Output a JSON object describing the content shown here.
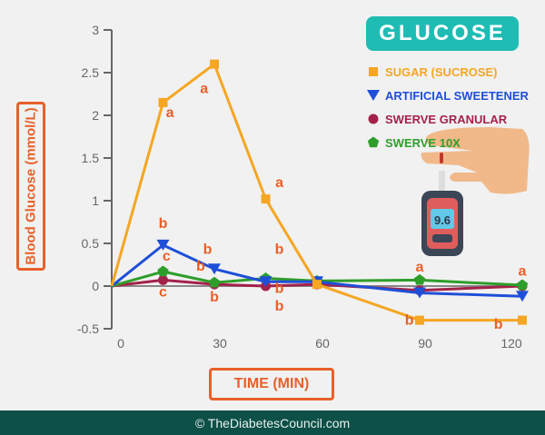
{
  "chart_data": {
    "type": "line",
    "title": "GLUCOSE",
    "xlabel": "TIME (MIN)",
    "ylabel": "Blood Glucose (mmol/L)",
    "x": [
      0,
      15,
      30,
      45,
      60,
      90,
      120
    ],
    "xticks": [
      "0",
      "30",
      "60",
      "90",
      "120"
    ],
    "xtick_values": [
      0,
      30,
      60,
      90,
      120
    ],
    "yticks": [
      "3",
      "2.5",
      "2",
      "1.5",
      "1",
      "0.5",
      "0",
      "-0.5"
    ],
    "ytick_values": [
      3,
      2.5,
      2,
      1.5,
      1,
      0.5,
      0,
      -0.5
    ],
    "xlim": [
      0,
      120
    ],
    "ylim": [
      -0.5,
      3
    ],
    "grid": false,
    "legend_position": "top-right",
    "series": [
      {
        "name": "SUGAR (SUCROSE)",
        "color": "#f5a623",
        "marker": "square",
        "values": [
          0,
          2.15,
          2.6,
          1.02,
          0.02,
          -0.4,
          -0.4
        ]
      },
      {
        "name": "ARTIFICIAL SWEETENER",
        "color": "#1f4fd8",
        "marker": "triangle-down",
        "values": [
          0,
          0.48,
          0.2,
          0.05,
          0.05,
          -0.08,
          -0.12
        ]
      },
      {
        "name": "SWERVE GRANULAR",
        "color": "#a3224a",
        "marker": "circle",
        "values": [
          0,
          0.07,
          0.02,
          0.0,
          0.02,
          -0.05,
          0.0
        ]
      },
      {
        "name": "SWERVE 10X",
        "color": "#2e9e2a",
        "marker": "pentagon",
        "values": [
          0,
          0.17,
          0.04,
          0.09,
          0.06,
          0.07,
          0.01
        ]
      }
    ],
    "annotations": [
      {
        "text": "a",
        "x": 17,
        "y": 1.98
      },
      {
        "text": "a",
        "x": 27,
        "y": 2.26
      },
      {
        "text": "a",
        "x": 49,
        "y": 1.16
      },
      {
        "text": "b",
        "x": 15,
        "y": 0.68
      },
      {
        "text": "c",
        "x": 16,
        "y": 0.3
      },
      {
        "text": "b",
        "x": 28,
        "y": 0.38
      },
      {
        "text": "b",
        "x": 26,
        "y": 0.18
      },
      {
        "text": "b",
        "x": 49,
        "y": 0.38
      },
      {
        "text": "c",
        "x": 15,
        "y": -0.12
      },
      {
        "text": "b",
        "x": 30,
        "y": -0.18
      },
      {
        "text": "b",
        "x": 49,
        "y": -0.08
      },
      {
        "text": "b",
        "x": 49,
        "y": -0.18
      },
      {
        "text": "a",
        "x": 90,
        "y": 0.17
      },
      {
        "text": "a",
        "x": 120,
        "y": 0.12
      },
      {
        "text": "b",
        "x": 87,
        "y": -0.45
      },
      {
        "text": "b",
        "x": 113,
        "y": -0.5
      }
    ],
    "annotation_color": "#e8602a"
  },
  "footer": "© TheDiabetesCouncil.com",
  "meter_reading": "9.6"
}
